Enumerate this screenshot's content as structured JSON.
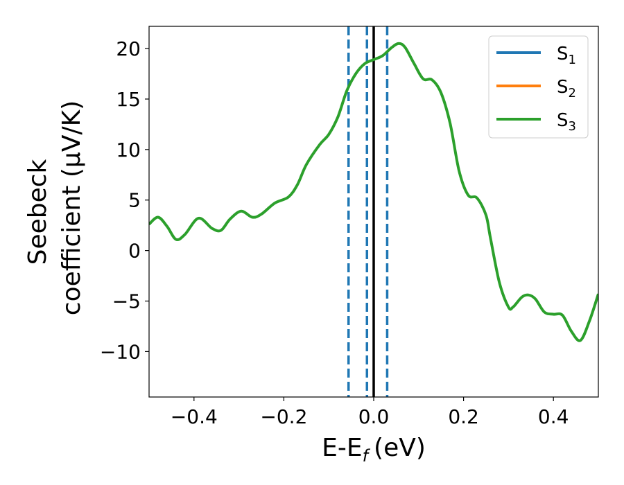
{
  "chart_data": {
    "type": "line",
    "xlabel": "E-E",
    "xlabel_sub": "f",
    "xlabel_unit": "(eV)",
    "ylabel_line1": "Seebeck",
    "ylabel_line2": "coefficient  (μV/K)",
    "xlim": [
      -0.5,
      0.5
    ],
    "ylim": [
      -14.5,
      22.2
    ],
    "xticks": [
      -0.4,
      -0.2,
      0.0,
      0.2,
      0.4
    ],
    "xtick_labels": [
      "−0.4",
      "−0.2",
      "0.0",
      "0.2",
      "0.4"
    ],
    "yticks": [
      -10,
      -5,
      0,
      5,
      10,
      15,
      20
    ],
    "ytick_labels": [
      "−10",
      "−5",
      "0",
      "5",
      "10",
      "15",
      "20"
    ],
    "grid": false,
    "legend_position": "top-right",
    "series": [
      {
        "name": "S",
        "sub": "1",
        "color": "#1f77b4"
      },
      {
        "name": "S",
        "sub": "2",
        "color": "#ff7f0e"
      },
      {
        "name": "S",
        "sub": "3",
        "color": "#2ca02c",
        "x": [
          -0.5,
          -0.48,
          -0.46,
          -0.44,
          -0.42,
          -0.39,
          -0.36,
          -0.34,
          -0.32,
          -0.295,
          -0.27,
          -0.25,
          -0.22,
          -0.19,
          -0.17,
          -0.15,
          -0.12,
          -0.1,
          -0.08,
          -0.06,
          -0.04,
          -0.02,
          0.0,
          0.02,
          0.04,
          0.056,
          0.07,
          0.09,
          0.11,
          0.13,
          0.15,
          0.17,
          0.19,
          0.21,
          0.23,
          0.25,
          0.26,
          0.28,
          0.3,
          0.31,
          0.33,
          0.345,
          0.36,
          0.38,
          0.4,
          0.42,
          0.44,
          0.46,
          0.48,
          0.5
        ],
        "y": [
          2.6,
          3.3,
          2.4,
          1.1,
          1.6,
          3.2,
          2.2,
          2.0,
          3.1,
          3.9,
          3.3,
          3.6,
          4.7,
          5.3,
          6.5,
          8.5,
          10.5,
          11.5,
          13.2,
          15.8,
          17.5,
          18.5,
          18.9,
          19.3,
          20.1,
          20.5,
          20.1,
          18.5,
          17.0,
          16.9,
          15.6,
          12.6,
          7.9,
          5.5,
          5.2,
          3.5,
          1.2,
          -3.2,
          -5.6,
          -5.6,
          -4.6,
          -4.4,
          -4.8,
          -6.1,
          -6.3,
          -6.4,
          -8.0,
          -8.9,
          -7.0,
          -4.3
        ]
      }
    ],
    "vlines": [
      {
        "x": -0.056,
        "style": "dashed",
        "color": "#1f77b4"
      },
      {
        "x": -0.015,
        "style": "dashed",
        "color": "#1f77b4"
      },
      {
        "x": 0.0,
        "style": "solid",
        "color": "#000000"
      },
      {
        "x": 0.03,
        "style": "dashed",
        "color": "#1f77b4"
      }
    ]
  }
}
